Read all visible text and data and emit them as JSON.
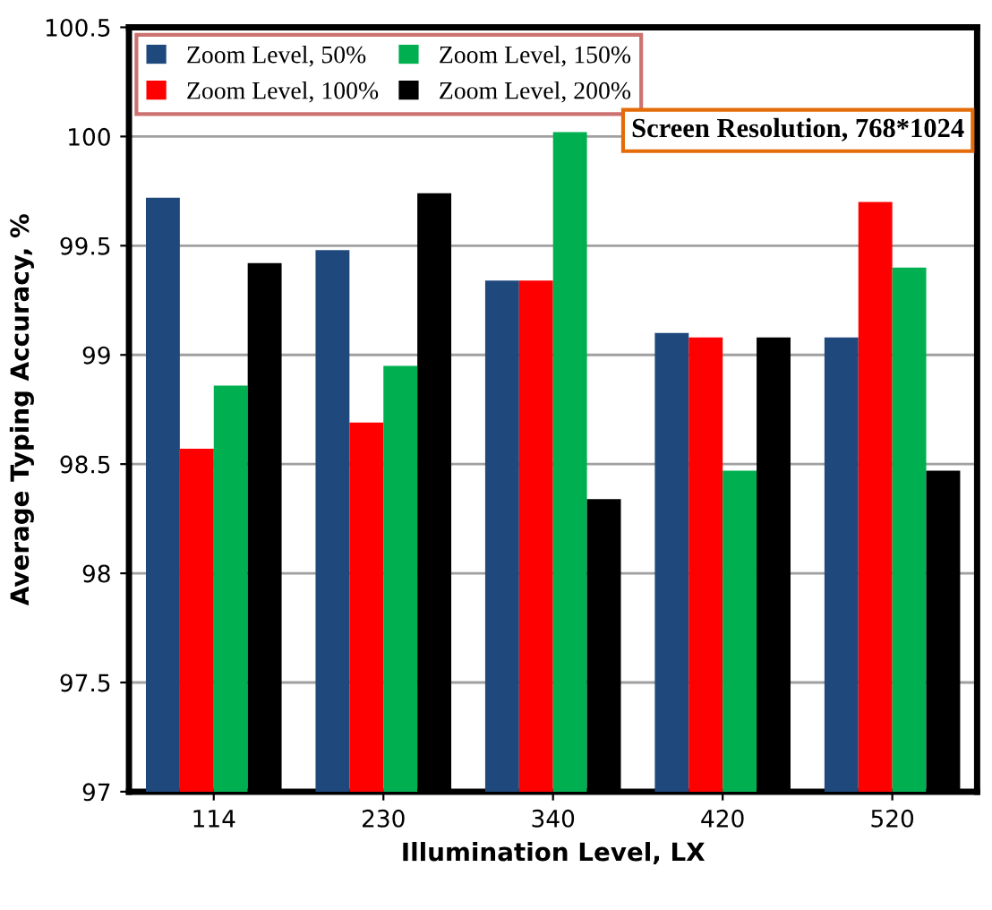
{
  "chart_data": {
    "type": "bar",
    "xlabel": "Illumination Level, LX",
    "ylabel": "Average Typing Accuracy, %",
    "categories": [
      "114",
      "230",
      "340",
      "420",
      "520"
    ],
    "series": [
      {
        "name": "Zoom Level, 50%",
        "color": "#1f497d",
        "values": [
          99.72,
          99.48,
          99.34,
          99.1,
          99.08
        ]
      },
      {
        "name": "Zoom Level, 100%",
        "color": "#ff0000",
        "values": [
          98.57,
          98.69,
          99.34,
          99.08,
          99.7
        ]
      },
      {
        "name": "Zoom Level, 150%",
        "color": "#00b050",
        "values": [
          98.86,
          98.95,
          100.02,
          98.47,
          99.4
        ]
      },
      {
        "name": "Zoom Level, 200%",
        "color": "#000000",
        "values": [
          99.42,
          99.74,
          98.34,
          99.08,
          98.47
        ]
      }
    ],
    "ylim": [
      97,
      100.5
    ],
    "yticks": [
      97,
      97.5,
      98,
      98.5,
      99,
      99.5,
      100,
      100.5
    ],
    "grid": "y",
    "legend": "top left",
    "annotations": [
      "Screen Resolution, 768*1024"
    ]
  }
}
